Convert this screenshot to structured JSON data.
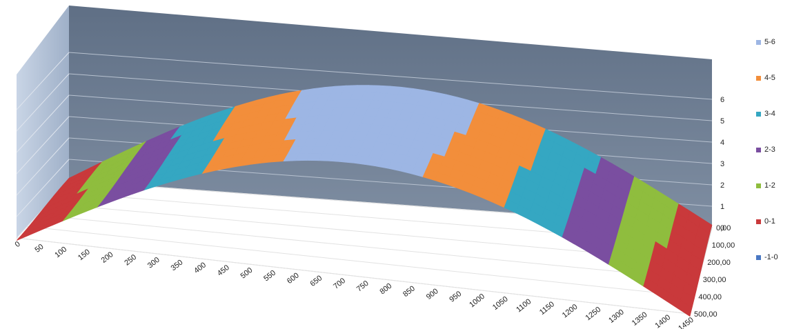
{
  "chart_data": {
    "type": "surface",
    "title": "",
    "xlabel": "",
    "ylabel": "",
    "zlabel": "",
    "x_ticks": [
      "0",
      "50",
      "100",
      "150",
      "200",
      "250",
      "300",
      "350",
      "400",
      "450",
      "500",
      "550",
      "600",
      "650",
      "700",
      "750",
      "800",
      "850",
      "900",
      "950",
      "1000",
      "1050",
      "1100",
      "1150",
      "1200",
      "1250",
      "1300",
      "1350",
      "1400",
      "1450"
    ],
    "y_ticks": [
      "0,00",
      "100,00",
      "200,00",
      "300,00",
      "400,00",
      "500,00"
    ],
    "z_ticks": [
      "0",
      "1",
      "2",
      "3",
      "4",
      "5",
      "6"
    ],
    "zlim": [
      0,
      6
    ],
    "ylim": [
      0,
      500
    ],
    "xlim": [
      0,
      1450
    ],
    "bands": [
      {
        "name": "5-6",
        "range": [
          5,
          6
        ],
        "color": "#9db6e4"
      },
      {
        "name": "4-5",
        "range": [
          4,
          5
        ],
        "color": "#f28e3b"
      },
      {
        "name": "3-4",
        "range": [
          3,
          4
        ],
        "color": "#35a7c2"
      },
      {
        "name": "2-3",
        "range": [
          2,
          3
        ],
        "color": "#7a4ea0"
      },
      {
        "name": "1-2",
        "range": [
          1,
          2
        ],
        "color": "#8fbd3e"
      },
      {
        "name": "0-1",
        "range": [
          0,
          1
        ],
        "color": "#c9393b"
      },
      {
        "name": "-1-0",
        "range": [
          -1,
          0
        ],
        "color": "#4a78c3"
      }
    ],
    "legend_position": "right"
  }
}
